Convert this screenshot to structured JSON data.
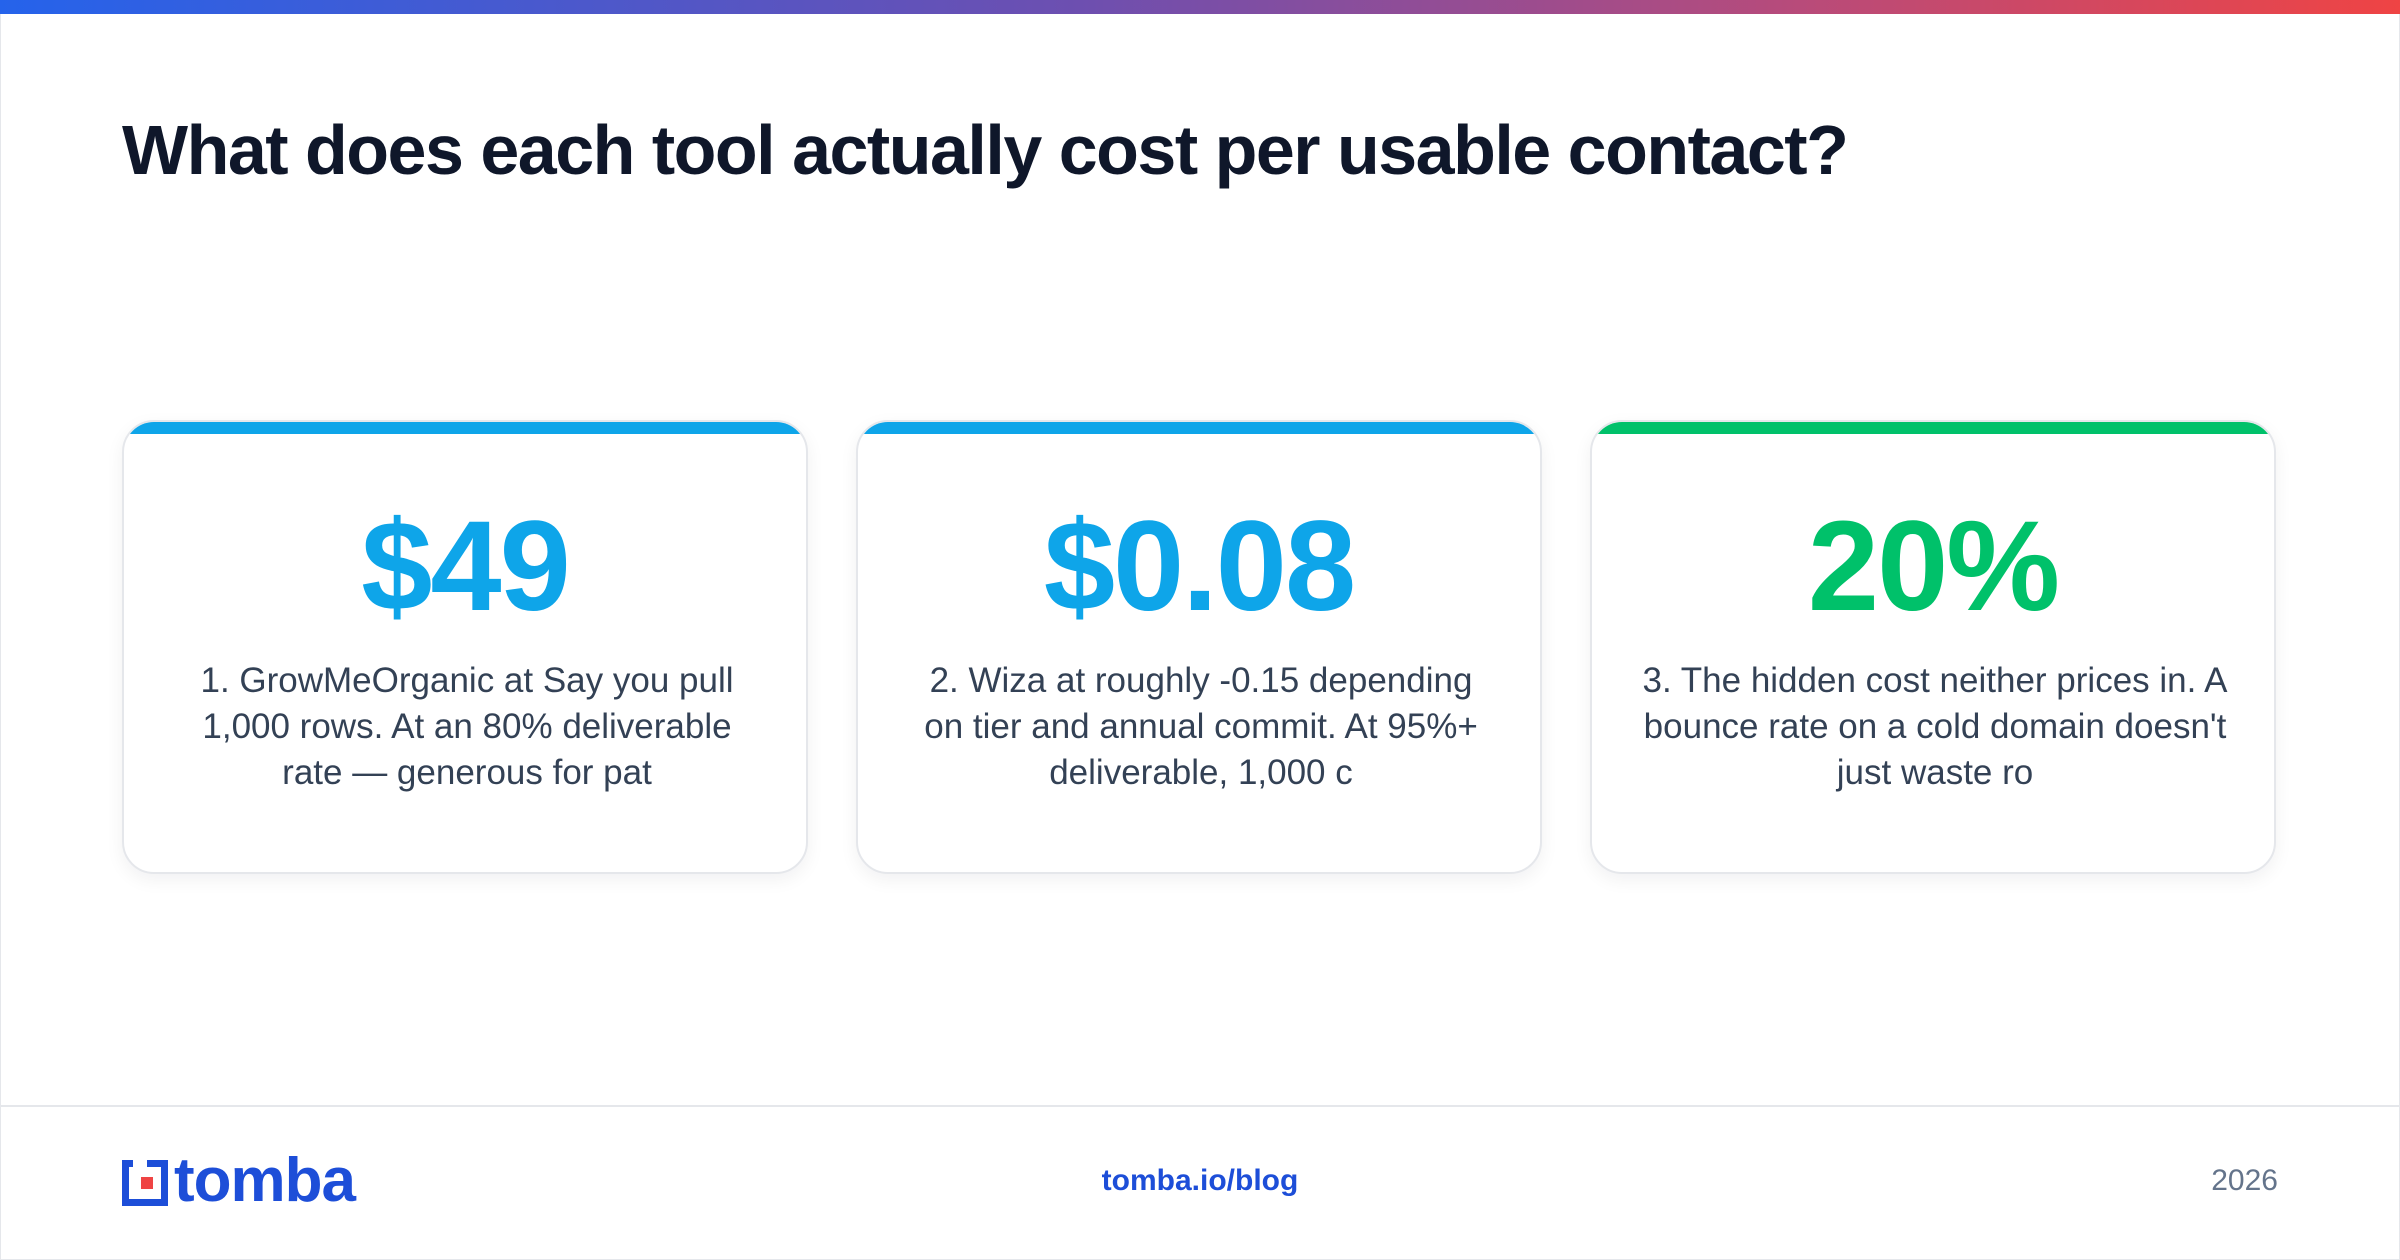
{
  "headline": "What does each tool actually cost per usable contact?",
  "cards": [
    {
      "stat": "$49",
      "desc": "1. GrowMeOrganic at Say you pull 1,000 rows. At an 80% deliverable rate — generous for pat",
      "accent_color": "#0ea5e9"
    },
    {
      "stat": "$0.08",
      "desc": "2. Wiza at roughly -0.15 depending on tier and annual commit. At 95%+ deliverable, 1,000 c",
      "accent_color": "#0ea5e9"
    },
    {
      "stat": "20%",
      "desc": "3. The hidden cost neither prices in. A bounce rate on a cold domain doesn't just waste ro",
      "accent_color": "#00c16a"
    }
  ],
  "footer": {
    "logo_text": "tomba",
    "site": "tomba.io/blog",
    "year": "2026"
  },
  "colors": {
    "headline": "#0f172a",
    "brand_blue": "#1d4ed8",
    "logo_red": "#ef4444",
    "body_text": "#334155",
    "muted": "#64748b"
  },
  "icons": {
    "logo": "tomba-logo-icon"
  }
}
